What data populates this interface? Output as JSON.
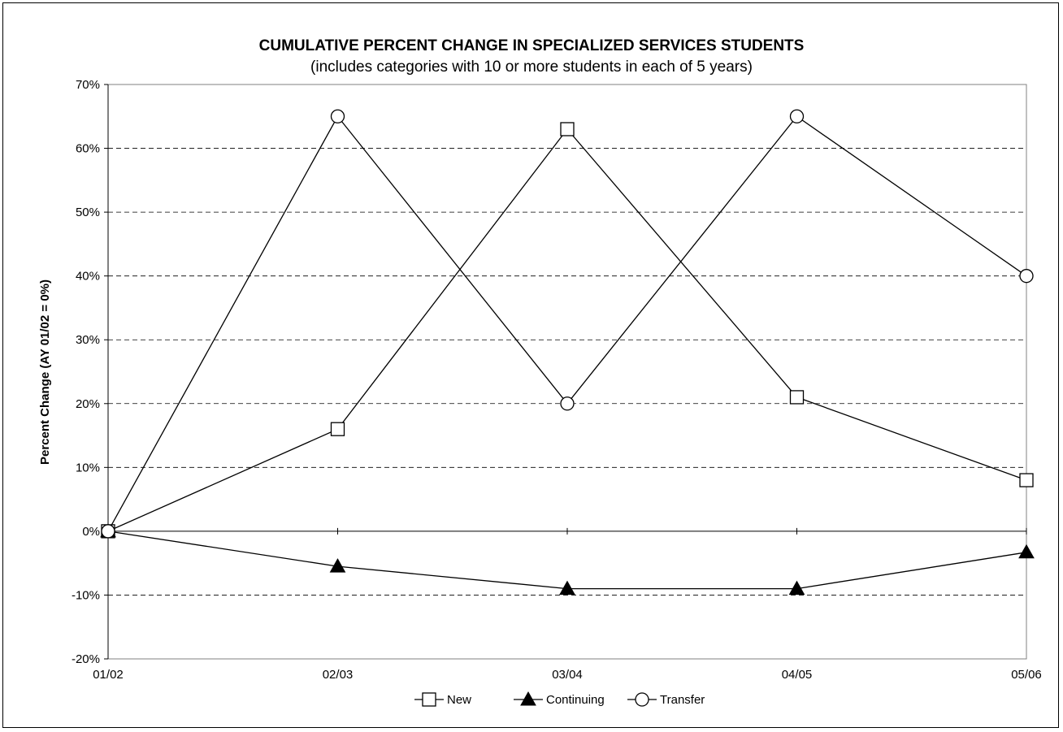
{
  "chart_data": {
    "type": "line",
    "title": "CUMULATIVE PERCENT CHANGE IN SPECIALIZED SERVICES STUDENTS",
    "subtitle": "(includes categories with 10 or more students in each of 5 years)",
    "xlabel": "",
    "ylabel": "Percent Change (AY 01/02 = 0%)",
    "categories": [
      "01/02",
      "02/03",
      "03/04",
      "04/05",
      "05/06"
    ],
    "ylim": [
      -20,
      70
    ],
    "yticks": [
      -20,
      -10,
      0,
      10,
      20,
      30,
      40,
      50,
      60,
      70
    ],
    "ytick_labels": [
      "-20%",
      "-10%",
      "0%",
      "10%",
      "20%",
      "30%",
      "40%",
      "50%",
      "60%",
      "70%"
    ],
    "grid": "horizontal dashed",
    "legend_position": "bottom",
    "series": [
      {
        "name": "New",
        "marker": "square-open",
        "values": [
          0,
          16,
          63,
          21,
          8
        ]
      },
      {
        "name": "Continuing",
        "marker": "triangle-filled",
        "values": [
          0,
          -5.5,
          -9,
          -9,
          -3.3
        ]
      },
      {
        "name": "Transfer",
        "marker": "circle-open",
        "values": [
          0,
          65,
          20,
          65,
          40
        ]
      }
    ]
  }
}
